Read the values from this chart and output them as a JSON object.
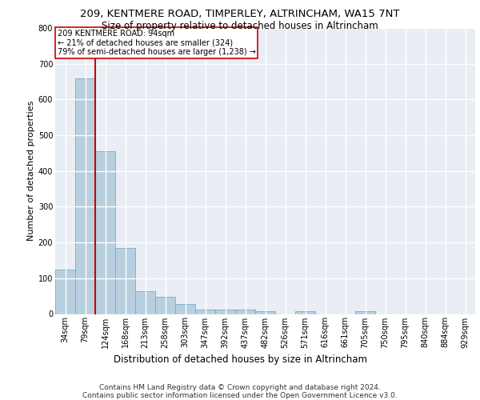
{
  "title1": "209, KENTMERE ROAD, TIMPERLEY, ALTRINCHAM, WA15 7NT",
  "title2": "Size of property relative to detached houses in Altrincham",
  "xlabel": "Distribution of detached houses by size in Altrincham",
  "ylabel": "Number of detached properties",
  "footer1": "Contains HM Land Registry data © Crown copyright and database right 2024.",
  "footer2": "Contains public sector information licensed under the Open Government Licence v3.0.",
  "categories": [
    "34sqm",
    "79sqm",
    "124sqm",
    "168sqm",
    "213sqm",
    "258sqm",
    "303sqm",
    "347sqm",
    "392sqm",
    "437sqm",
    "482sqm",
    "526sqm",
    "571sqm",
    "616sqm",
    "661sqm",
    "705sqm",
    "750sqm",
    "795sqm",
    "840sqm",
    "884sqm",
    "929sqm"
  ],
  "values": [
    125,
    660,
    455,
    185,
    63,
    48,
    27,
    12,
    13,
    13,
    8,
    0,
    8,
    0,
    0,
    8,
    0,
    0,
    0,
    0,
    0
  ],
  "bar_color": "#b8cfdf",
  "bar_edge_color": "#7aaac8",
  "property_line_color": "#cc0000",
  "property_line_x": 1.5,
  "annotation_text": "209 KENTMERE ROAD: 94sqm\n← 21% of detached houses are smaller (324)\n79% of semi-detached houses are larger (1,238) →",
  "annotation_box_edgecolor": "#cc0000",
  "ylim": [
    0,
    800
  ],
  "yticks": [
    0,
    100,
    200,
    300,
    400,
    500,
    600,
    700,
    800
  ],
  "background_color": "#e8eef4",
  "grid_color": "#ffffff",
  "title_fontsize": 9.5,
  "subtitle_fontsize": 8.5,
  "ylabel_fontsize": 8,
  "xlabel_fontsize": 8.5,
  "tick_fontsize": 7,
  "annotation_fontsize": 7,
  "footer_fontsize": 6.5
}
